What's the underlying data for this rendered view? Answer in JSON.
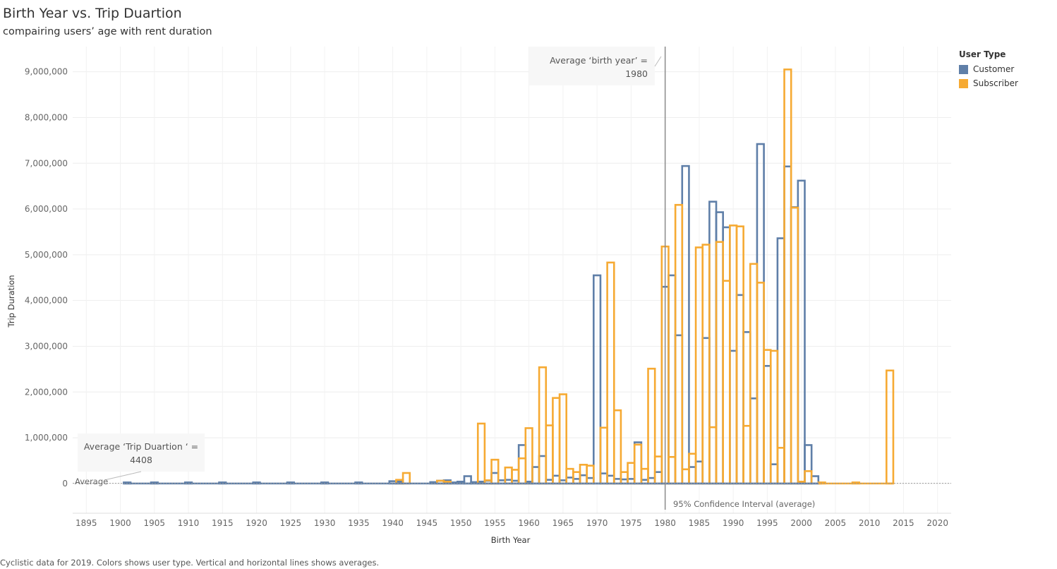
{
  "title": "Birth Year vs. Trip Duartion",
  "subtitle": "compairing users’ age with rent duration",
  "caption": "Cyclistic data for 2019.  Colors shows user type. Vertical and horizontal lines shows averages.",
  "legend": {
    "title": "User Type",
    "entries": [
      {
        "label": "Customer",
        "color": "#5f7fa8"
      },
      {
        "label": "Subscriber",
        "color": "#f6aa33"
      }
    ]
  },
  "annotations": {
    "avg_birth_line1": "Average ‘birth year’ =",
    "avg_birth_line2": "1980",
    "avg_trip_line1": "Average ‘Trip Duartion ‘ =",
    "avg_trip_line2": "4408",
    "average_label": "Average",
    "ci_label": "95% Confidence Interval (average)"
  },
  "chart_data": {
    "type": "bar",
    "style": "step outline",
    "xlabel": "Birth Year",
    "ylabel": "Trip Duration",
    "xlim": [
      1893,
      2022
    ],
    "ylim": [
      -650000,
      9550000
    ],
    "x_ticks": [
      1895,
      1900,
      1905,
      1910,
      1915,
      1920,
      1925,
      1930,
      1935,
      1940,
      1945,
      1950,
      1955,
      1960,
      1965,
      1970,
      1975,
      1980,
      1985,
      1990,
      1995,
      2000,
      2005,
      2010,
      2015,
      2020
    ],
    "y_ticks": [
      0,
      1000000,
      2000000,
      3000000,
      4000000,
      5000000,
      6000000,
      7000000,
      8000000,
      9000000
    ],
    "y_tick_labels": [
      "0",
      "1,000,000",
      "2,000,000",
      "3,000,000",
      "4,000,000",
      "5,000,000",
      "6,000,000",
      "7,000,000",
      "8,000,000",
      "9,000,000"
    ],
    "grid": true,
    "legend_position": "top-right",
    "reference_lines": {
      "average_birth_year": 1980,
      "average_trip_duration": 4408
    },
    "series": [
      {
        "name": "Customer",
        "color": "#5f7fa8",
        "points": [
          [
            1901,
            10000
          ],
          [
            1905,
            10000
          ],
          [
            1910,
            10000
          ],
          [
            1915,
            10000
          ],
          [
            1920,
            10000
          ],
          [
            1925,
            10000
          ],
          [
            1930,
            10000
          ],
          [
            1935,
            10000
          ],
          [
            1940,
            50000
          ],
          [
            1941,
            40000
          ],
          [
            1946,
            30000
          ],
          [
            1947,
            60000
          ],
          [
            1948,
            70000
          ],
          [
            1949,
            20000
          ],
          [
            1950,
            40000
          ],
          [
            1951,
            160000
          ],
          [
            1952,
            30000
          ],
          [
            1953,
            40000
          ],
          [
            1954,
            60000
          ],
          [
            1955,
            230000
          ],
          [
            1956,
            70000
          ],
          [
            1957,
            80000
          ],
          [
            1958,
            60000
          ],
          [
            1959,
            840000
          ],
          [
            1960,
            40000
          ],
          [
            1961,
            360000
          ],
          [
            1962,
            600000
          ],
          [
            1963,
            80000
          ],
          [
            1964,
            170000
          ],
          [
            1965,
            70000
          ],
          [
            1966,
            130000
          ],
          [
            1967,
            100000
          ],
          [
            1968,
            180000
          ],
          [
            1969,
            120000
          ],
          [
            1970,
            4550000
          ],
          [
            1971,
            220000
          ],
          [
            1972,
            170000
          ],
          [
            1973,
            100000
          ],
          [
            1974,
            90000
          ],
          [
            1975,
            100000
          ],
          [
            1976,
            900000
          ],
          [
            1977,
            80000
          ],
          [
            1978,
            120000
          ],
          [
            1979,
            250000
          ],
          [
            1980,
            4300000
          ],
          [
            1981,
            4550000
          ],
          [
            1982,
            3240000
          ],
          [
            1983,
            6940000
          ],
          [
            1984,
            360000
          ],
          [
            1985,
            480000
          ],
          [
            1986,
            3180000
          ],
          [
            1987,
            6160000
          ],
          [
            1988,
            5930000
          ],
          [
            1989,
            5600000
          ],
          [
            1990,
            2900000
          ],
          [
            1991,
            4120000
          ],
          [
            1992,
            3310000
          ],
          [
            1993,
            1860000
          ],
          [
            1994,
            7420000
          ],
          [
            1995,
            2570000
          ],
          [
            1996,
            420000
          ],
          [
            1997,
            5360000
          ],
          [
            1998,
            6930000
          ],
          [
            1999,
            6040000
          ],
          [
            2000,
            6620000
          ],
          [
            2001,
            840000
          ],
          [
            2002,
            160000
          ]
        ]
      },
      {
        "name": "Subscriber",
        "color": "#f6aa33",
        "points": [
          [
            1941,
            80000
          ],
          [
            1942,
            230000
          ],
          [
            1947,
            60000
          ],
          [
            1948,
            40000
          ],
          [
            1953,
            1310000
          ],
          [
            1954,
            70000
          ],
          [
            1955,
            520000
          ],
          [
            1957,
            350000
          ],
          [
            1958,
            300000
          ],
          [
            1959,
            550000
          ],
          [
            1960,
            1210000
          ],
          [
            1962,
            2540000
          ],
          [
            1963,
            1270000
          ],
          [
            1964,
            1870000
          ],
          [
            1965,
            1950000
          ],
          [
            1966,
            320000
          ],
          [
            1967,
            250000
          ],
          [
            1968,
            410000
          ],
          [
            1969,
            390000
          ],
          [
            1971,
            1220000
          ],
          [
            1972,
            4830000
          ],
          [
            1973,
            1600000
          ],
          [
            1974,
            250000
          ],
          [
            1975,
            450000
          ],
          [
            1976,
            850000
          ],
          [
            1977,
            320000
          ],
          [
            1978,
            2510000
          ],
          [
            1979,
            590000
          ],
          [
            1980,
            5180000
          ],
          [
            1981,
            580000
          ],
          [
            1982,
            6090000
          ],
          [
            1983,
            310000
          ],
          [
            1984,
            650000
          ],
          [
            1985,
            5160000
          ],
          [
            1986,
            5220000
          ],
          [
            1987,
            1230000
          ],
          [
            1988,
            5280000
          ],
          [
            1989,
            4430000
          ],
          [
            1990,
            5640000
          ],
          [
            1991,
            5620000
          ],
          [
            1992,
            1260000
          ],
          [
            1993,
            4800000
          ],
          [
            1994,
            4390000
          ],
          [
            1995,
            2920000
          ],
          [
            1996,
            2900000
          ],
          [
            1997,
            780000
          ],
          [
            1998,
            9050000
          ],
          [
            1999,
            6030000
          ],
          [
            2000,
            40000
          ],
          [
            2001,
            270000
          ],
          [
            2003,
            10000
          ],
          [
            2008,
            10000
          ],
          [
            2013,
            2470000
          ]
        ]
      }
    ]
  }
}
